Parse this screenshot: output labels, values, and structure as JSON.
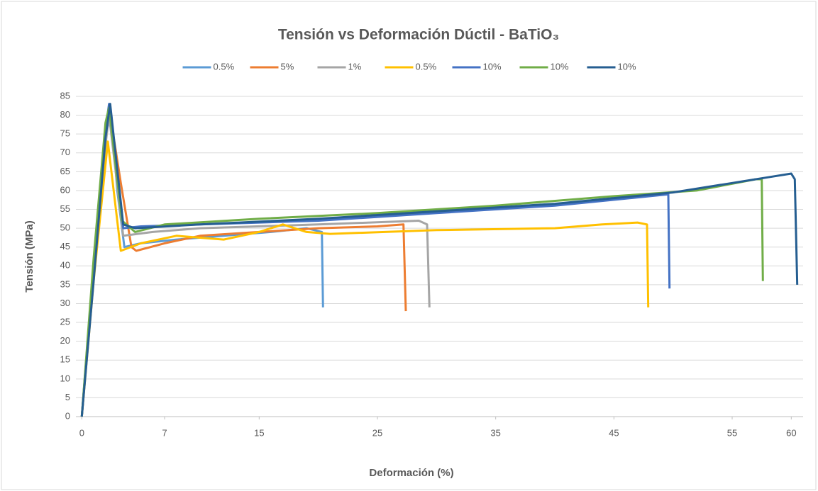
{
  "chart_data": {
    "type": "line",
    "title": "Tensión vs Deformación Dúctil - BaTiO₃",
    "x_label": "Deformación (%)",
    "y_label": "Tensión (MPa)",
    "xlim": [
      -0.5,
      61
    ],
    "xticks": [
      0,
      7,
      15,
      25,
      35,
      45,
      55,
      60
    ],
    "ylim": [
      0,
      85
    ],
    "yticks": [
      0,
      5,
      10,
      15,
      20,
      25,
      30,
      35,
      40,
      45,
      50,
      55,
      60,
      65,
      70,
      75,
      80,
      85
    ],
    "grid": true,
    "legend": "top",
    "series": [
      {
        "name": "0.5%",
        "color": "#5b9bd5",
        "x": [
          0,
          1,
          2,
          2.5,
          3,
          3.6,
          5,
          8,
          12,
          16,
          19,
          20.3,
          20.4
        ],
        "values": [
          0,
          40,
          75,
          80,
          60,
          45,
          46,
          47,
          48,
          49,
          50,
          49,
          29
        ]
      },
      {
        "name": "5%",
        "color": "#ed7d31",
        "x": [
          0,
          1,
          2,
          2.3,
          3.3,
          4.2,
          4.6,
          7,
          10,
          15,
          20,
          25,
          27.2,
          27.4
        ],
        "values": [
          0,
          38,
          74,
          82,
          62,
          45,
          44,
          46,
          48,
          49,
          50,
          50.5,
          51,
          28
        ]
      },
      {
        "name": "1%",
        "color": "#a5a5a5",
        "x": [
          0,
          1,
          2,
          2.3,
          3.5,
          6,
          10,
          20,
          28.5,
          29.2,
          29.4
        ],
        "values": [
          0,
          38,
          72,
          80,
          48,
          49,
          50,
          51,
          52,
          51,
          29
        ]
      },
      {
        "name": "0.5%",
        "color": "#ffc000",
        "x": [
          0,
          1,
          2.2,
          3.3,
          5,
          8,
          12,
          15,
          17,
          19,
          21,
          30,
          40,
          44,
          47,
          47.8,
          47.9
        ],
        "values": [
          0,
          36,
          73,
          44,
          46,
          48,
          47,
          49,
          51,
          49,
          48.5,
          49.5,
          50,
          51,
          51.5,
          51,
          29
        ]
      },
      {
        "name": "10%",
        "color": "#4472c4",
        "x": [
          0,
          1,
          2,
          2.3,
          3.5,
          5,
          10,
          20,
          30,
          40,
          49.6,
          49.7
        ],
        "values": [
          0,
          40,
          76,
          83,
          50,
          50.5,
          51,
          52,
          54,
          56,
          59,
          34
        ]
      },
      {
        "name": "10%",
        "color": "#70ad47",
        "x": [
          0,
          1,
          2,
          2.3,
          3.4,
          4.5,
          7,
          15,
          25,
          35,
          45,
          52,
          57,
          57.5,
          57.6
        ],
        "values": [
          0,
          42,
          78,
          82,
          52,
          49,
          51,
          52.5,
          54,
          56,
          58.5,
          60,
          63,
          63,
          36
        ]
      },
      {
        "name": "10%",
        "color": "#255e91",
        "x": [
          0,
          1,
          2,
          2.4,
          3.5,
          4.5,
          10,
          20,
          30,
          40,
          50,
          55,
          58,
          60,
          60.3,
          60.5
        ],
        "values": [
          0,
          36,
          74,
          83,
          51,
          50,
          51,
          52.5,
          54.5,
          56.5,
          59.5,
          62,
          63.5,
          64.5,
          63,
          35
        ]
      }
    ]
  }
}
